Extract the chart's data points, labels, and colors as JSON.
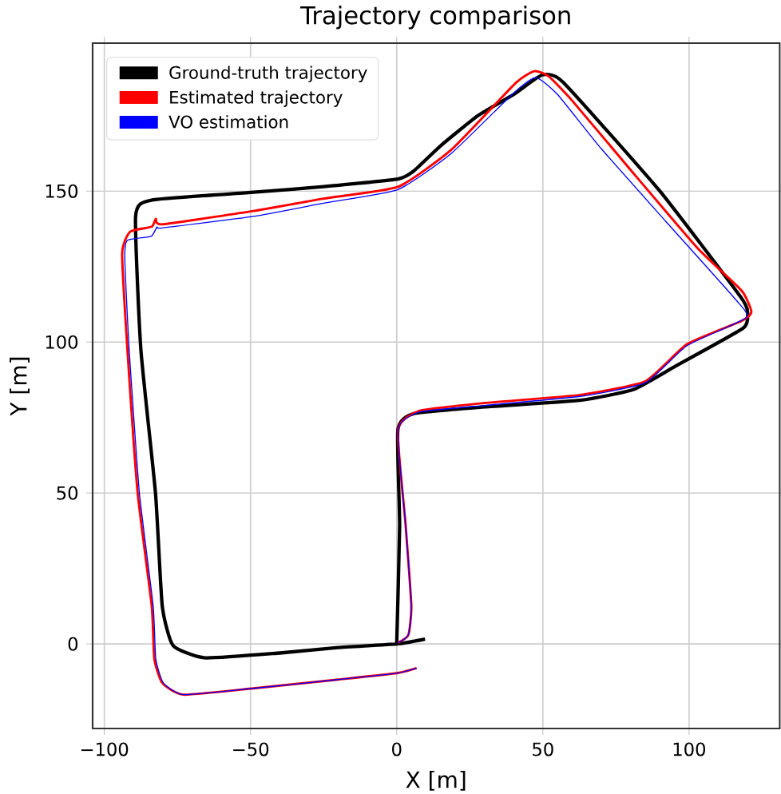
{
  "chart_data": {
    "type": "line",
    "title": "Trajectory comparison",
    "xlabel": "X [m]",
    "ylabel": "Y [m]",
    "xlim": [
      -104,
      131
    ],
    "ylim": [
      -28,
      199
    ],
    "xticks": [
      {
        "value": -100,
        "label": "−100"
      },
      {
        "value": -50,
        "label": "−50"
      },
      0,
      50,
      100
    ],
    "yticks": [
      0,
      50,
      100,
      150
    ],
    "grid": true,
    "legend": "top left",
    "marker": "none",
    "line_style": "solid",
    "series": [
      {
        "name": "Ground-truth trajectory",
        "color": "#000000",
        "x": [
          0,
          1,
          0.4,
          5.9,
          30,
          62.7,
          81,
          95.7,
          118.5,
          120,
          117.6,
          90,
          57,
          49.8,
          40,
          27.8,
          15,
          5.9,
          0.4,
          -25,
          -49,
          -83.9,
          -89.3,
          -87.5,
          -82.5,
          -80.2,
          -76.5,
          -65.5,
          -40,
          -20,
          0,
          9.7
        ],
        "values": [
          0,
          39,
          71,
          76.3,
          78.5,
          80.7,
          84.3,
          92.2,
          104.6,
          110,
          115,
          150,
          186,
          188.5,
          182,
          175,
          165,
          156.7,
          154,
          151.5,
          149.6,
          147,
          141.7,
          97.5,
          50,
          12.7,
          -0.5,
          -4.6,
          -3,
          -1.2,
          0,
          1.6
        ]
      },
      {
        "name": "Estimated trajectory",
        "color": "#ff0000",
        "x": [
          0.4,
          4,
          5,
          3,
          0.4,
          7.7,
          30,
          62.7,
          85,
          99.3,
          118,
          121.3,
          118,
          103,
          80,
          60,
          52,
          47.1,
          40.7,
          18.7,
          0.4,
          -25,
          -49,
          -80.2,
          -82.4,
          -83.8,
          -91.2,
          -93.9,
          -92.1,
          -88.6,
          -83.8,
          -82.9,
          -80.2,
          -72.9,
          -49,
          -20,
          0,
          6.8
        ],
        "values": [
          0.4,
          3,
          12.7,
          40,
          71,
          77.2,
          79.8,
          82.5,
          87,
          99.3,
          107,
          110,
          117,
          131,
          157,
          180,
          188,
          189.7,
          185.8,
          163.7,
          151.4,
          147.5,
          143.4,
          139,
          140.8,
          138.2,
          136.5,
          129.3,
          97.5,
          50,
          12.7,
          -4.9,
          -12.9,
          -16.8,
          -14.7,
          -11.8,
          -9.7,
          -8
        ]
      },
      {
        "name": "VO estimation",
        "color": "#0000ff",
        "x": [
          0.4,
          4,
          5,
          3,
          0.4,
          7.7,
          30,
          62.7,
          85,
          99.3,
          119.4,
          116,
          92,
          70,
          55,
          47.6,
          40,
          18.7,
          0.4,
          -25,
          -49,
          -80.2,
          -82,
          -84,
          -92.1,
          -93,
          -91.5,
          -88,
          -83.3,
          -82.4,
          -79.8,
          -72.9,
          -49,
          -20,
          0,
          6.8
        ],
        "values": [
          0.4,
          3,
          12.7,
          40,
          71,
          76.8,
          79,
          82,
          86.5,
          98.8,
          108,
          114,
          140,
          164,
          182,
          187.6,
          182.5,
          162.5,
          150.5,
          146,
          141.6,
          137.8,
          138.1,
          135,
          133.7,
          127.5,
          97.5,
          50,
          12.7,
          -4.9,
          -12.9,
          -16.8,
          -14.7,
          -11.8,
          -9.7,
          -8
        ]
      }
    ]
  }
}
